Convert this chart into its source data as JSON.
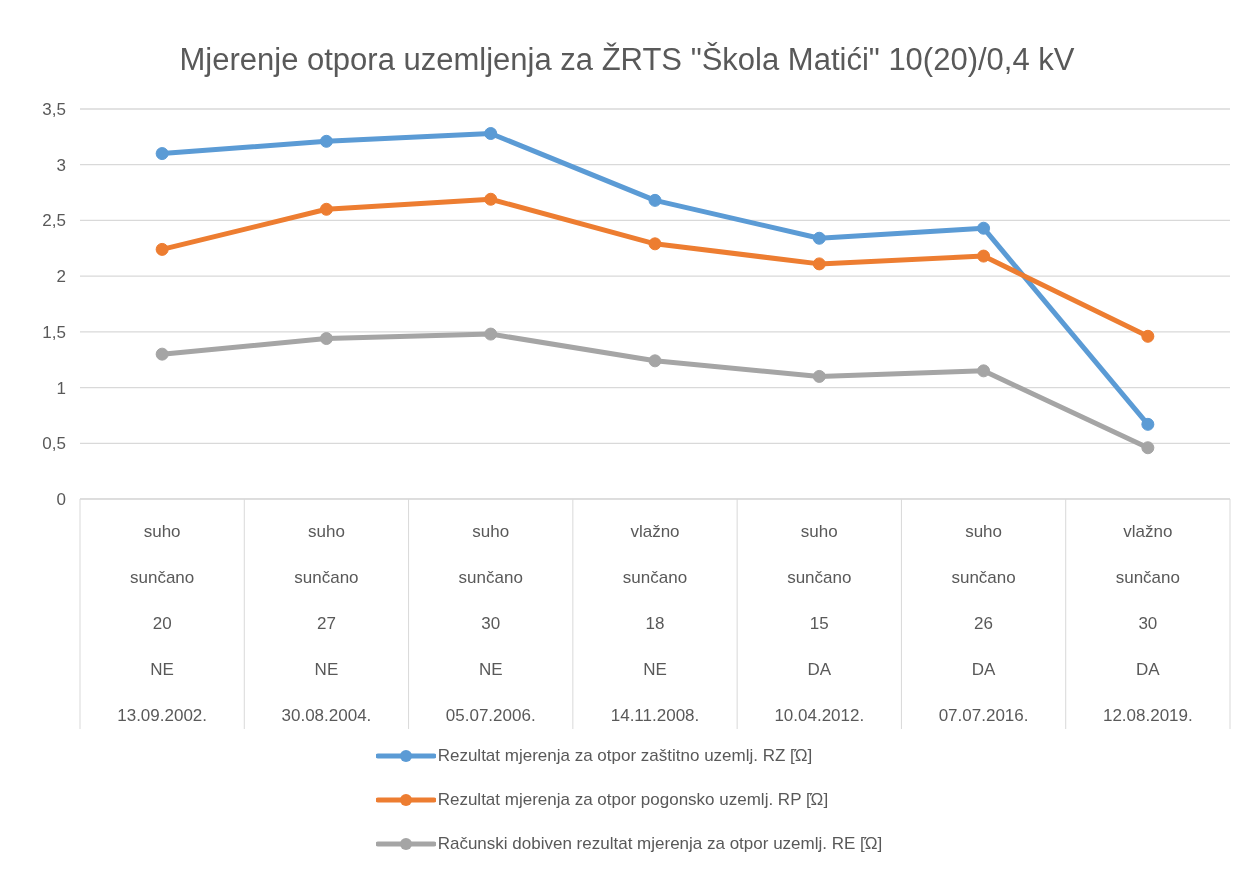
{
  "chart_data": {
    "type": "line",
    "title": "Mjerenje otpora uzemljenja za ŽRTS \"Škola Matići\" 10(20)/0,4 kV",
    "categories": [
      "suho\nsunčano\n20\nNE\n13.09.2002.",
      "suho\nsunčano\n27\nNE\n30.08.2004.",
      "suho\nsunčano\n30\nNE\n05.07.2006.",
      "vlažno\nsunčano\n18\nNE\n14.11.2008.",
      "suho\nsunčano\n15\nDA\n10.04.2012.",
      "suho\nsunčano\n26\nDA\n07.07.2016.",
      "vlažno\nsunčano\n30\nDA\n12.08.2019."
    ],
    "series": [
      {
        "name": "Rezultat mjerenja za otpor zaštitno uzemlj. RZ [Ώ]",
        "color": "#5b9bd5",
        "values": [
          3.1,
          3.21,
          3.28,
          2.68,
          2.34,
          2.43,
          0.67
        ]
      },
      {
        "name": "Rezultat mjerenja za otpor pogonsko uzemlj. RP [Ώ]",
        "color": "#ed7d31",
        "values": [
          2.24,
          2.6,
          2.69,
          2.29,
          2.11,
          2.18,
          1.46
        ]
      },
      {
        "name": "Računski dobiven rezultat mjerenja za otpor uzemlj. RE [Ώ]",
        "color": "#a5a5a5",
        "values": [
          1.3,
          1.44,
          1.48,
          1.24,
          1.1,
          1.15,
          0.46
        ]
      }
    ],
    "ylim": [
      0,
      3.5
    ],
    "yticks": [
      0,
      {
        "value": 0.5,
        "label": "0,5"
      },
      1,
      {
        "value": 1.5,
        "label": "1,5"
      },
      2,
      {
        "value": 2.5,
        "label": "2,5"
      },
      3,
      {
        "value": 3.5,
        "label": "3,5"
      }
    ],
    "grid": "y",
    "legend": "bottom",
    "marker": "circle",
    "line_style": "solid"
  }
}
